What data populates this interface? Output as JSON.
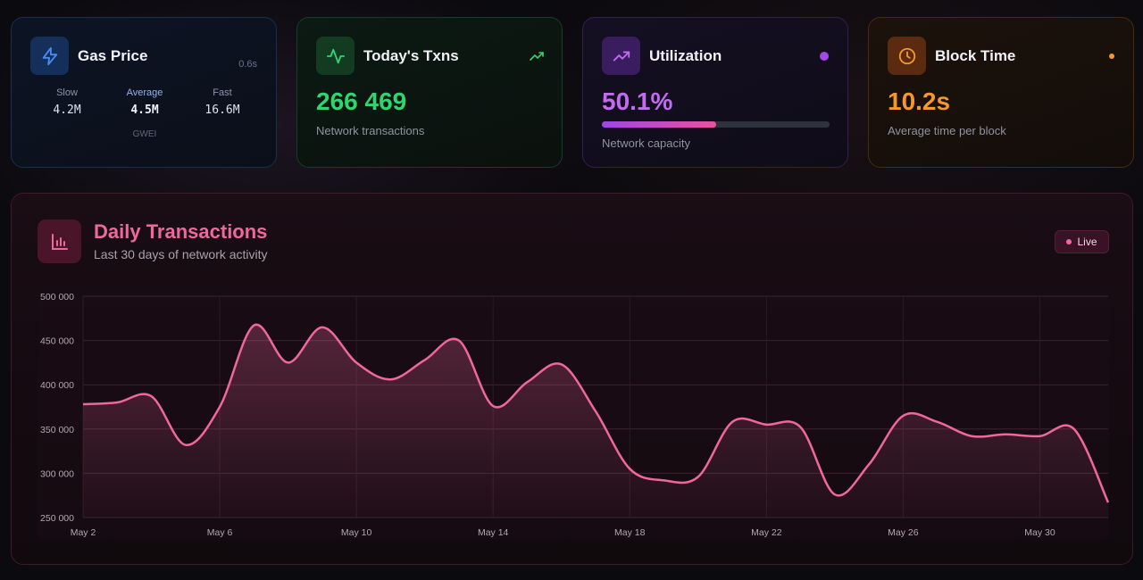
{
  "cards": {
    "gas": {
      "title": "Gas Price",
      "updated": "0.6s",
      "icon": "lightning-icon",
      "slow_label": "Slow",
      "slow_value": "4.2M",
      "avg_label": "Average",
      "avg_value": "4.5M",
      "fast_label": "Fast",
      "fast_value": "16.6M",
      "unit": "GWEI"
    },
    "txns": {
      "title": "Today's Txns",
      "icon": "activity-icon",
      "trend_icon": "trending-up-icon",
      "value": "266 469",
      "subtitle": "Network transactions",
      "accent": "#2fd66f"
    },
    "utilization": {
      "title": "Utilization",
      "icon": "trending-up-icon",
      "value": "50.1%",
      "progress": 0.501,
      "subtitle": "Network capacity",
      "accent": "#c56af2"
    },
    "block_time": {
      "title": "Block Time",
      "icon": "clock-icon",
      "value": "10.2s",
      "subtitle": "Average time per block",
      "accent": "#f5962e"
    }
  },
  "panel": {
    "icon": "bar-chart-icon",
    "title": "Daily Transactions",
    "subtitle": "Last 30 days of network activity",
    "live_label": "Live"
  },
  "chart_data": {
    "type": "area",
    "title": "Daily Transactions",
    "xlabel": "",
    "ylabel": "",
    "ylim": [
      250000,
      500000
    ],
    "yticks": [
      250000,
      300000,
      350000,
      400000,
      450000,
      500000
    ],
    "ytick_labels": [
      "250 000",
      "300 000",
      "350 000",
      "400 000",
      "450 000",
      "500 000"
    ],
    "xtick_labels": [
      "May 2",
      "May 6",
      "May 10",
      "May 14",
      "May 18",
      "May 22",
      "May 26",
      "May 30"
    ],
    "grid": true,
    "color": "#f0679c",
    "x": [
      "May 2",
      "May 3",
      "May 4",
      "May 5",
      "May 6",
      "May 7",
      "May 8",
      "May 9",
      "May 10",
      "May 11",
      "May 12",
      "May 13",
      "May 14",
      "May 15",
      "May 16",
      "May 17",
      "May 18",
      "May 19",
      "May 20",
      "May 21",
      "May 22",
      "May 23",
      "May 24",
      "May 25",
      "May 26",
      "May 27",
      "May 28",
      "May 29",
      "May 30",
      "May 31",
      "Jun 1"
    ],
    "values": [
      378000,
      380000,
      387000,
      332000,
      375000,
      467000,
      425000,
      465000,
      425000,
      406000,
      428000,
      450000,
      376000,
      403000,
      423000,
      370000,
      305000,
      292000,
      296000,
      358000,
      355000,
      352000,
      276000,
      310000,
      365000,
      358000,
      342000,
      344000,
      342000,
      350000,
      267000
    ]
  }
}
